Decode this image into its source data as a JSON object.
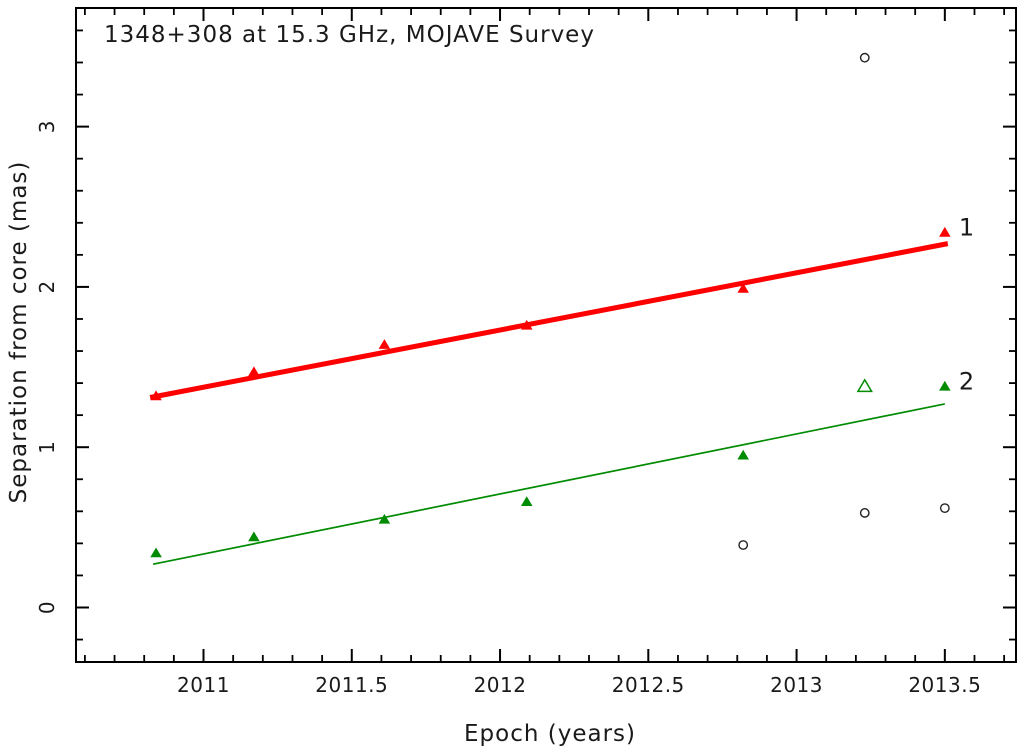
{
  "colors": {
    "background": "#ffffff",
    "frame": "#000000",
    "component1": "#ff0000",
    "component1_label": "#ff4444",
    "component2": "#008b00",
    "component2_label": "#3aa03a",
    "unidentified": "#222222"
  },
  "chart_data": {
    "type": "scatter",
    "title": "1348+308 at 15.3 GHz, MOJAVE Survey",
    "xlabel": "Epoch (years)",
    "ylabel": "Separation from core (mas)",
    "xlim": [
      2010.57,
      2013.74
    ],
    "ylim": [
      -0.34,
      3.74
    ],
    "x_major_ticks": [
      2011,
      2011.5,
      2012,
      2012.5,
      2013,
      2013.5
    ],
    "x_tick_labels": [
      "2011",
      "2011.5",
      "2012",
      "2012.5",
      "2013",
      "2013.5"
    ],
    "x_minor_step": 0.1,
    "y_major_ticks": [
      0,
      1,
      2,
      3
    ],
    "y_tick_labels": [
      "0",
      "1",
      "2",
      "3"
    ],
    "y_minor_step": 0.2,
    "grid": false,
    "y_tick_labels_rotated": true,
    "legend_position": "labels-at-line-ends",
    "series": [
      {
        "id": "component-1",
        "label": "1",
        "marker": "triangle-filled",
        "color": "#ff0000",
        "label_color": "#ff4444",
        "points": [
          [
            2010.84,
            1.32
          ],
          [
            2011.17,
            1.47
          ],
          [
            2011.61,
            1.64
          ],
          [
            2012.09,
            1.76
          ],
          [
            2012.82,
            1.99
          ],
          [
            2013.5,
            2.34
          ]
        ],
        "fit_line": {
          "x1": 2010.82,
          "y1": 1.31,
          "x2": 2013.51,
          "y2": 2.27,
          "width": 5
        }
      },
      {
        "id": "component-2",
        "label": "2",
        "marker": "triangle-filled",
        "color": "#008b00",
        "label_color": "#3aa03a",
        "points": [
          [
            2010.84,
            0.34
          ],
          [
            2011.17,
            0.44
          ],
          [
            2011.61,
            0.55
          ],
          [
            2012.09,
            0.66
          ],
          [
            2012.82,
            0.95
          ],
          [
            2013.5,
            1.38
          ]
        ],
        "open_points": [
          [
            2013.23,
            1.38
          ]
        ],
        "fit_line": {
          "x1": 2010.83,
          "y1": 0.27,
          "x2": 2013.5,
          "y2": 1.27,
          "width": 1.7
        }
      },
      {
        "id": "unidentified",
        "label": "",
        "marker": "circle-open",
        "color": "#222222",
        "points": [
          [
            2012.82,
            0.39
          ],
          [
            2013.23,
            3.43
          ],
          [
            2013.23,
            0.59
          ],
          [
            2013.5,
            0.62
          ]
        ]
      }
    ]
  }
}
